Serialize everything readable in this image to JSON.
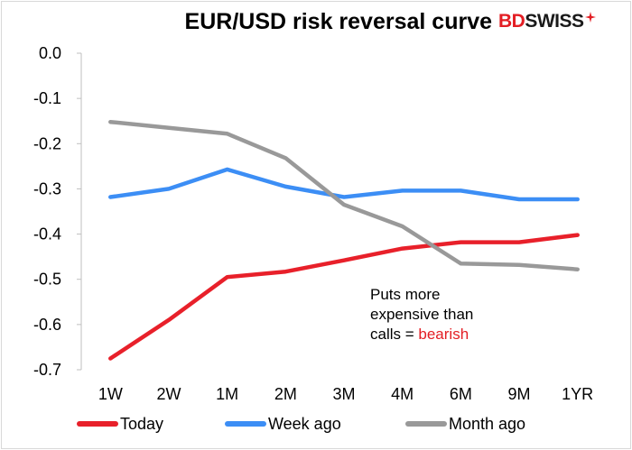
{
  "title": "EUR/USD risk reversal curve",
  "logo": {
    "part1": "BD",
    "part2": "SWISS"
  },
  "annotation": {
    "line1": "Puts more",
    "line2": "expensive than",
    "line3_prefix": "calls = ",
    "line3_highlight": "bearish"
  },
  "colors": {
    "today": "#e8202a",
    "week_ago": "#3c8ef5",
    "month_ago": "#999999",
    "highlight": "#e31e24"
  },
  "chart_data": {
    "type": "line",
    "title": "EUR/USD risk reversal curve",
    "categories": [
      "1W",
      "2W",
      "1M",
      "2M",
      "3M",
      "4M",
      "6M",
      "9M",
      "1YR"
    ],
    "ylim": [
      -0.7,
      0.0
    ],
    "yticks": [
      "0.0",
      "-0.1",
      "-0.2",
      "-0.3",
      "-0.4",
      "-0.5",
      "-0.6",
      "-0.7"
    ],
    "ytick_values": [
      0.0,
      -0.1,
      -0.2,
      -0.3,
      -0.4,
      -0.5,
      -0.6,
      -0.7
    ],
    "grid": false,
    "legend_position": "bottom",
    "series": [
      {
        "name": "Today",
        "color": "#e8202a",
        "values": [
          -0.675,
          -0.59,
          -0.495,
          -0.483,
          -0.458,
          -0.432,
          -0.418,
          -0.418,
          -0.402
        ]
      },
      {
        "name": "Week ago",
        "color": "#3c8ef5",
        "values": [
          -0.318,
          -0.3,
          -0.257,
          -0.295,
          -0.318,
          -0.304,
          -0.304,
          -0.323,
          -0.323
        ]
      },
      {
        "name": "Month ago",
        "color": "#999999",
        "values": [
          -0.152,
          -0.165,
          -0.178,
          -0.232,
          -0.335,
          -0.383,
          -0.465,
          -0.468,
          -0.478
        ]
      }
    ]
  }
}
